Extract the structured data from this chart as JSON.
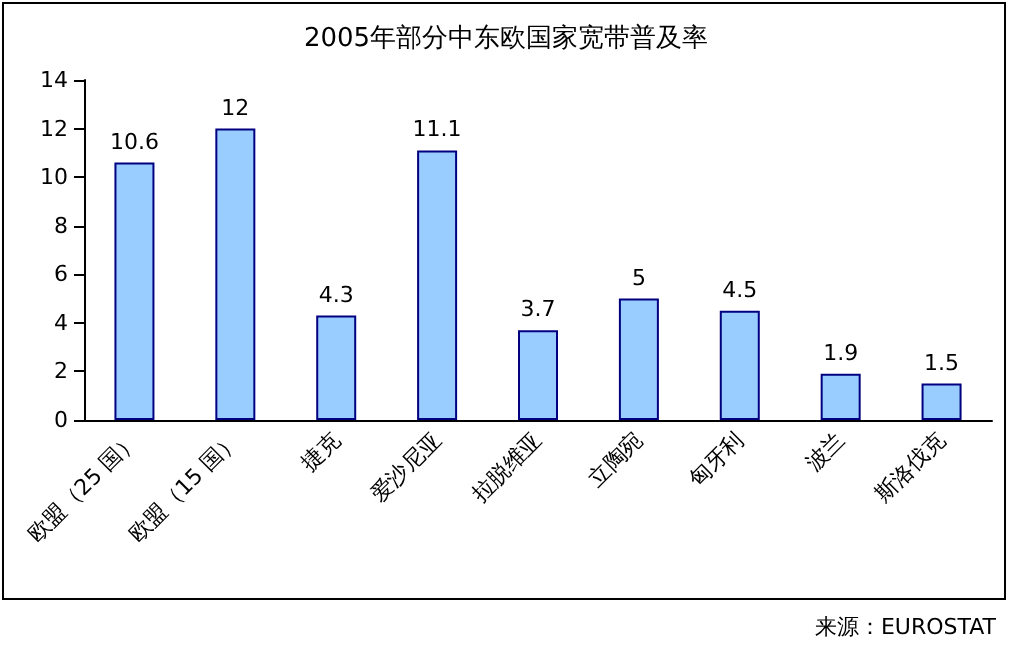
{
  "chart_data": {
    "type": "bar",
    "title": "2005年部分中东欧国家宽带普及率",
    "categories": [
      "欧盟（25 国）",
      "欧盟（15 国）",
      "捷克",
      "爱沙尼亚",
      "拉脱维亚",
      "立陶宛",
      "匈牙利",
      "波兰",
      "斯洛伐克"
    ],
    "values": [
      10.6,
      12,
      4.3,
      11.1,
      3.7,
      5,
      4.5,
      1.9,
      1.5
    ],
    "color": "#99ccff",
    "ylim": [
      0,
      14
    ],
    "yticks": [
      0,
      2,
      4,
      6,
      8,
      10,
      12,
      14
    ],
    "grid": false,
    "data_labels": true,
    "annotations": [
      "来源：EUROSTAT"
    ]
  }
}
